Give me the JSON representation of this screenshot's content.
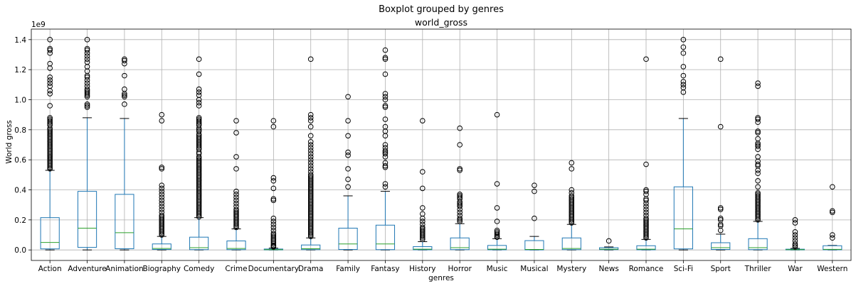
{
  "chart_data": {
    "type": "boxplot",
    "suptitle": "Boxplot grouped by genres",
    "title": "world_gross",
    "xlabel": "genres",
    "ylabel": "World gross",
    "y_multiplier": "1e9",
    "ylim": [
      -0.07,
      1.47
    ],
    "yticks": [
      0.0,
      0.2,
      0.4,
      0.6,
      0.8,
      1.0,
      1.2,
      1.4
    ],
    "ytick_labels": [
      "0.0",
      "0.2",
      "0.4",
      "0.6",
      "0.8",
      "1.0",
      "1.2",
      "1.4"
    ],
    "grid": true,
    "colors": {
      "box": "#1f77b4",
      "median": "#2ca02c",
      "cap": "#000000",
      "flier": "#000000",
      "grid": "#b0b0b0"
    },
    "categories": [
      "Action",
      "Adventure",
      "Animation",
      "Biography",
      "Comedy",
      "Crime",
      "Documentary",
      "Drama",
      "Family",
      "Fantasy",
      "History",
      "Horror",
      "Music",
      "Musical",
      "Mystery",
      "News",
      "Romance",
      "Sci-Fi",
      "Sport",
      "Thriller",
      "War",
      "Western"
    ],
    "boxes": [
      {
        "whislo": 0,
        "q1": 0.007,
        "med": 0.05,
        "q3": 0.215,
        "whishi": 0.53,
        "fliers": [
          1.4,
          1.34,
          1.33,
          1.31,
          1.24,
          1.21,
          1.15,
          1.13,
          1.11,
          1.09,
          1.06,
          1.04,
          0.96,
          0.88,
          0.87,
          0.86,
          0.85,
          0.84,
          0.83,
          0.81,
          0.8,
          0.79,
          0.78,
          0.77,
          0.76,
          0.75,
          0.74,
          0.73,
          0.72,
          0.71,
          0.7,
          0.69,
          0.68,
          0.67,
          0.66,
          0.65,
          0.64,
          0.63,
          0.62,
          0.61,
          0.6,
          0.59,
          0.58,
          0.57,
          0.56,
          0.55,
          0.54
        ]
      },
      {
        "whislo": 0,
        "q1": 0.017,
        "med": 0.145,
        "q3": 0.39,
        "whishi": 0.88,
        "fliers": [
          1.4,
          1.34,
          1.33,
          1.31,
          1.29,
          1.27,
          1.25,
          1.22,
          1.19,
          1.16,
          1.15,
          1.13,
          1.11,
          1.09,
          1.07,
          1.06,
          1.05,
          1.04,
          1.03,
          1.02,
          0.97,
          0.96,
          0.95
        ]
      },
      {
        "whislo": 0,
        "q1": 0.008,
        "med": 0.115,
        "q3": 0.37,
        "whishi": 0.875,
        "fliers": [
          1.27,
          1.26,
          1.24,
          1.16,
          1.07,
          1.04,
          1.03,
          1.02,
          0.97
        ]
      },
      {
        "whislo": 0,
        "q1": 0.003,
        "med": 0.01,
        "q3": 0.04,
        "whishi": 0.09,
        "fliers": [
          0.9,
          0.86,
          0.55,
          0.54,
          0.43,
          0.41,
          0.39,
          0.37,
          0.35,
          0.33,
          0.31,
          0.29,
          0.27,
          0.25,
          0.23,
          0.22,
          0.21,
          0.2,
          0.19,
          0.18,
          0.17,
          0.16,
          0.15,
          0.14,
          0.13,
          0.12,
          0.11,
          0.1
        ]
      },
      {
        "whislo": 0,
        "q1": 0.002,
        "med": 0.015,
        "q3": 0.085,
        "whishi": 0.215,
        "fliers": [
          1.27,
          1.17,
          1.07,
          1.05,
          1.03,
          1.0,
          0.98,
          0.96,
          0.88,
          0.87,
          0.86,
          0.85,
          0.84,
          0.83,
          0.81,
          0.8,
          0.79,
          0.77,
          0.76,
          0.75,
          0.74,
          0.73,
          0.72,
          0.71,
          0.7,
          0.69,
          0.68,
          0.67,
          0.65,
          0.64,
          0.62,
          0.61,
          0.6,
          0.59,
          0.58,
          0.57,
          0.56,
          0.55,
          0.54,
          0.53,
          0.52,
          0.51,
          0.5,
          0.49,
          0.48,
          0.47,
          0.46,
          0.45,
          0.44,
          0.43,
          0.42,
          0.41,
          0.4,
          0.39,
          0.38,
          0.37,
          0.36,
          0.35,
          0.34,
          0.33,
          0.32,
          0.31,
          0.3,
          0.29,
          0.28,
          0.27,
          0.26,
          0.25,
          0.24,
          0.23,
          0.22
        ]
      },
      {
        "whislo": 0,
        "q1": 0.002,
        "med": 0.01,
        "q3": 0.06,
        "whishi": 0.14,
        "fliers": [
          0.86,
          0.78,
          0.62,
          0.54,
          0.39,
          0.37,
          0.35,
          0.33,
          0.31,
          0.29,
          0.27,
          0.26,
          0.25,
          0.24,
          0.23,
          0.22,
          0.21,
          0.2,
          0.19,
          0.18,
          0.17,
          0.16,
          0.15
        ]
      },
      {
        "whislo": 0,
        "q1": 0.0005,
        "med": 0.002,
        "q3": 0.006,
        "whishi": 0.012,
        "fliers": [
          0.86,
          0.82,
          0.48,
          0.46,
          0.41,
          0.34,
          0.33,
          0.21,
          0.19,
          0.17,
          0.15,
          0.13,
          0.11,
          0.1,
          0.09,
          0.08,
          0.07,
          0.06,
          0.05,
          0.04,
          0.03,
          0.025,
          0.02
        ]
      },
      {
        "whislo": 0,
        "q1": 0.002,
        "med": 0.008,
        "q3": 0.033,
        "whishi": 0.08,
        "fliers": [
          1.27,
          0.9,
          0.88,
          0.86,
          0.82,
          0.76,
          0.72,
          0.7,
          0.68,
          0.66,
          0.64,
          0.62,
          0.6,
          0.58,
          0.56,
          0.54,
          0.52,
          0.5,
          0.49,
          0.48,
          0.47,
          0.46,
          0.45,
          0.44,
          0.43,
          0.42,
          0.41,
          0.4,
          0.39,
          0.38,
          0.37,
          0.36,
          0.35,
          0.34,
          0.33,
          0.32,
          0.31,
          0.3,
          0.29,
          0.28,
          0.27,
          0.26,
          0.25,
          0.24,
          0.23,
          0.22,
          0.21,
          0.2,
          0.19,
          0.18,
          0.17,
          0.16,
          0.15,
          0.14,
          0.13,
          0.12,
          0.11,
          0.1,
          0.09
        ]
      },
      {
        "whislo": 0,
        "q1": 0.003,
        "med": 0.04,
        "q3": 0.145,
        "whishi": 0.36,
        "fliers": [
          1.02,
          0.86,
          0.76,
          0.65,
          0.63,
          0.54,
          0.47,
          0.42
        ]
      },
      {
        "whislo": 0,
        "q1": 0.002,
        "med": 0.04,
        "q3": 0.165,
        "whishi": 0.39,
        "fliers": [
          1.33,
          1.28,
          1.27,
          1.17,
          1.04,
          1.02,
          1.0,
          0.96,
          0.95,
          0.87,
          0.82,
          0.79,
          0.76,
          0.7,
          0.68,
          0.66,
          0.65,
          0.64,
          0.62,
          0.58,
          0.56,
          0.55,
          0.44,
          0.42
        ]
      },
      {
        "whislo": 0,
        "q1": 0.001,
        "med": 0.005,
        "q3": 0.022,
        "whishi": 0.055,
        "fliers": [
          0.86,
          0.52,
          0.41,
          0.28,
          0.24,
          0.21,
          0.19,
          0.17,
          0.15,
          0.14,
          0.13,
          0.12,
          0.11,
          0.1,
          0.09,
          0.08,
          0.07
        ]
      },
      {
        "whislo": 0,
        "q1": 0.002,
        "med": 0.015,
        "q3": 0.08,
        "whishi": 0.175,
        "fliers": [
          0.81,
          0.7,
          0.54,
          0.53,
          0.37,
          0.36,
          0.35,
          0.34,
          0.32,
          0.31,
          0.3,
          0.29,
          0.27,
          0.25,
          0.23,
          0.21,
          0.2,
          0.19
        ]
      },
      {
        "whislo": 0,
        "q1": 0.001,
        "med": 0.005,
        "q3": 0.03,
        "whishi": 0.075,
        "fliers": [
          0.9,
          0.44,
          0.28,
          0.19,
          0.13,
          0.12,
          0.11,
          0.1,
          0.09,
          0.085
        ]
      },
      {
        "whislo": 0,
        "q1": 0.0005,
        "med": 0.003,
        "q3": 0.062,
        "whishi": 0.09,
        "fliers": [
          0.43,
          0.39,
          0.21
        ]
      },
      {
        "whislo": 0,
        "q1": 0.002,
        "med": 0.01,
        "q3": 0.08,
        "whishi": 0.17,
        "fliers": [
          0.58,
          0.54,
          0.4,
          0.38,
          0.36,
          0.35,
          0.34,
          0.33,
          0.32,
          0.31,
          0.3,
          0.29,
          0.28,
          0.27,
          0.26,
          0.25,
          0.24,
          0.23,
          0.22,
          0.21,
          0.2,
          0.19,
          0.18
        ]
      },
      {
        "whislo": 0,
        "q1": 0.002,
        "med": 0.005,
        "q3": 0.015,
        "whishi": 0.02,
        "fliers": [
          0.06
        ]
      },
      {
        "whislo": 0,
        "q1": 0.001,
        "med": 0.005,
        "q3": 0.028,
        "whishi": 0.07,
        "fliers": [
          1.27,
          0.57,
          0.4,
          0.39,
          0.37,
          0.34,
          0.33,
          0.31,
          0.29,
          0.27,
          0.25,
          0.23,
          0.21,
          0.2,
          0.19,
          0.18,
          0.17,
          0.16,
          0.15,
          0.14,
          0.13,
          0.12,
          0.11,
          0.1,
          0.09,
          0.08
        ]
      },
      {
        "whislo": 0,
        "q1": 0.007,
        "med": 0.14,
        "q3": 0.42,
        "whishi": 0.875,
        "fliers": [
          1.4,
          1.35,
          1.31,
          1.22,
          1.16,
          1.12,
          1.1,
          1.08,
          1.05
        ]
      },
      {
        "whislo": 0,
        "q1": 0.003,
        "med": 0.015,
        "q3": 0.048,
        "whishi": 0.105,
        "fliers": [
          1.27,
          0.82,
          0.28,
          0.27,
          0.21,
          0.2,
          0.17,
          0.16,
          0.13
        ]
      },
      {
        "whislo": 0,
        "q1": 0.002,
        "med": 0.015,
        "q3": 0.075,
        "whishi": 0.19,
        "fliers": [
          1.11,
          1.09,
          0.88,
          0.87,
          0.85,
          0.79,
          0.78,
          0.74,
          0.71,
          0.7,
          0.69,
          0.67,
          0.62,
          0.59,
          0.57,
          0.56,
          0.53,
          0.51,
          0.46,
          0.42,
          0.38,
          0.37,
          0.36,
          0.35,
          0.34,
          0.33,
          0.32,
          0.31,
          0.3,
          0.29,
          0.28,
          0.27,
          0.26,
          0.25,
          0.24,
          0.23,
          0.22,
          0.21,
          0.2
        ]
      },
      {
        "whislo": 0,
        "q1": 0.0005,
        "med": 0.002,
        "q3": 0.005,
        "whishi": 0.01,
        "fliers": [
          0.2,
          0.18,
          0.12,
          0.1,
          0.08,
          0.06,
          0.04,
          0.03,
          0.02
        ]
      },
      {
        "whislo": 0,
        "q1": 0.001,
        "med": 0.004,
        "q3": 0.028,
        "whishi": 0.03,
        "fliers": [
          0.42,
          0.26,
          0.25,
          0.1,
          0.08
        ]
      }
    ]
  }
}
